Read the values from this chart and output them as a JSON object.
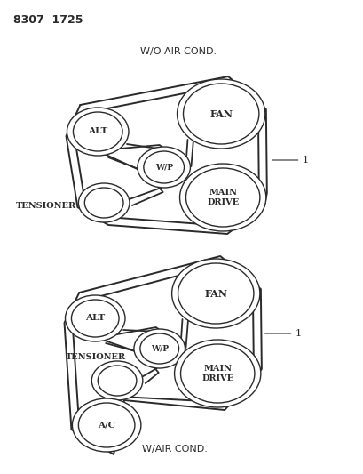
{
  "bg_color": "#ffffff",
  "line_color": "#2a2a2a",
  "ref_label": "8307  1725",
  "diag1_title": "W/O AIR COND.",
  "diag2_title": "W/AIR COND.",
  "belt_label": "1",
  "d1": {
    "ALT": [
      108,
      148,
      28,
      22
    ],
    "FAN": [
      248,
      128,
      43,
      34
    ],
    "WP": [
      183,
      188,
      23,
      18
    ],
    "MAIN": [
      250,
      222,
      42,
      33
    ],
    "TENS": [
      115,
      228,
      22,
      17
    ]
  },
  "d2": {
    "ALT": [
      105,
      358,
      27,
      21
    ],
    "FAN": [
      242,
      330,
      43,
      34
    ],
    "WP": [
      178,
      392,
      22,
      17
    ],
    "MAIN": [
      244,
      420,
      42,
      33
    ],
    "TENS": [
      130,
      428,
      22,
      17
    ],
    "AC": [
      118,
      478,
      32,
      25
    ]
  }
}
